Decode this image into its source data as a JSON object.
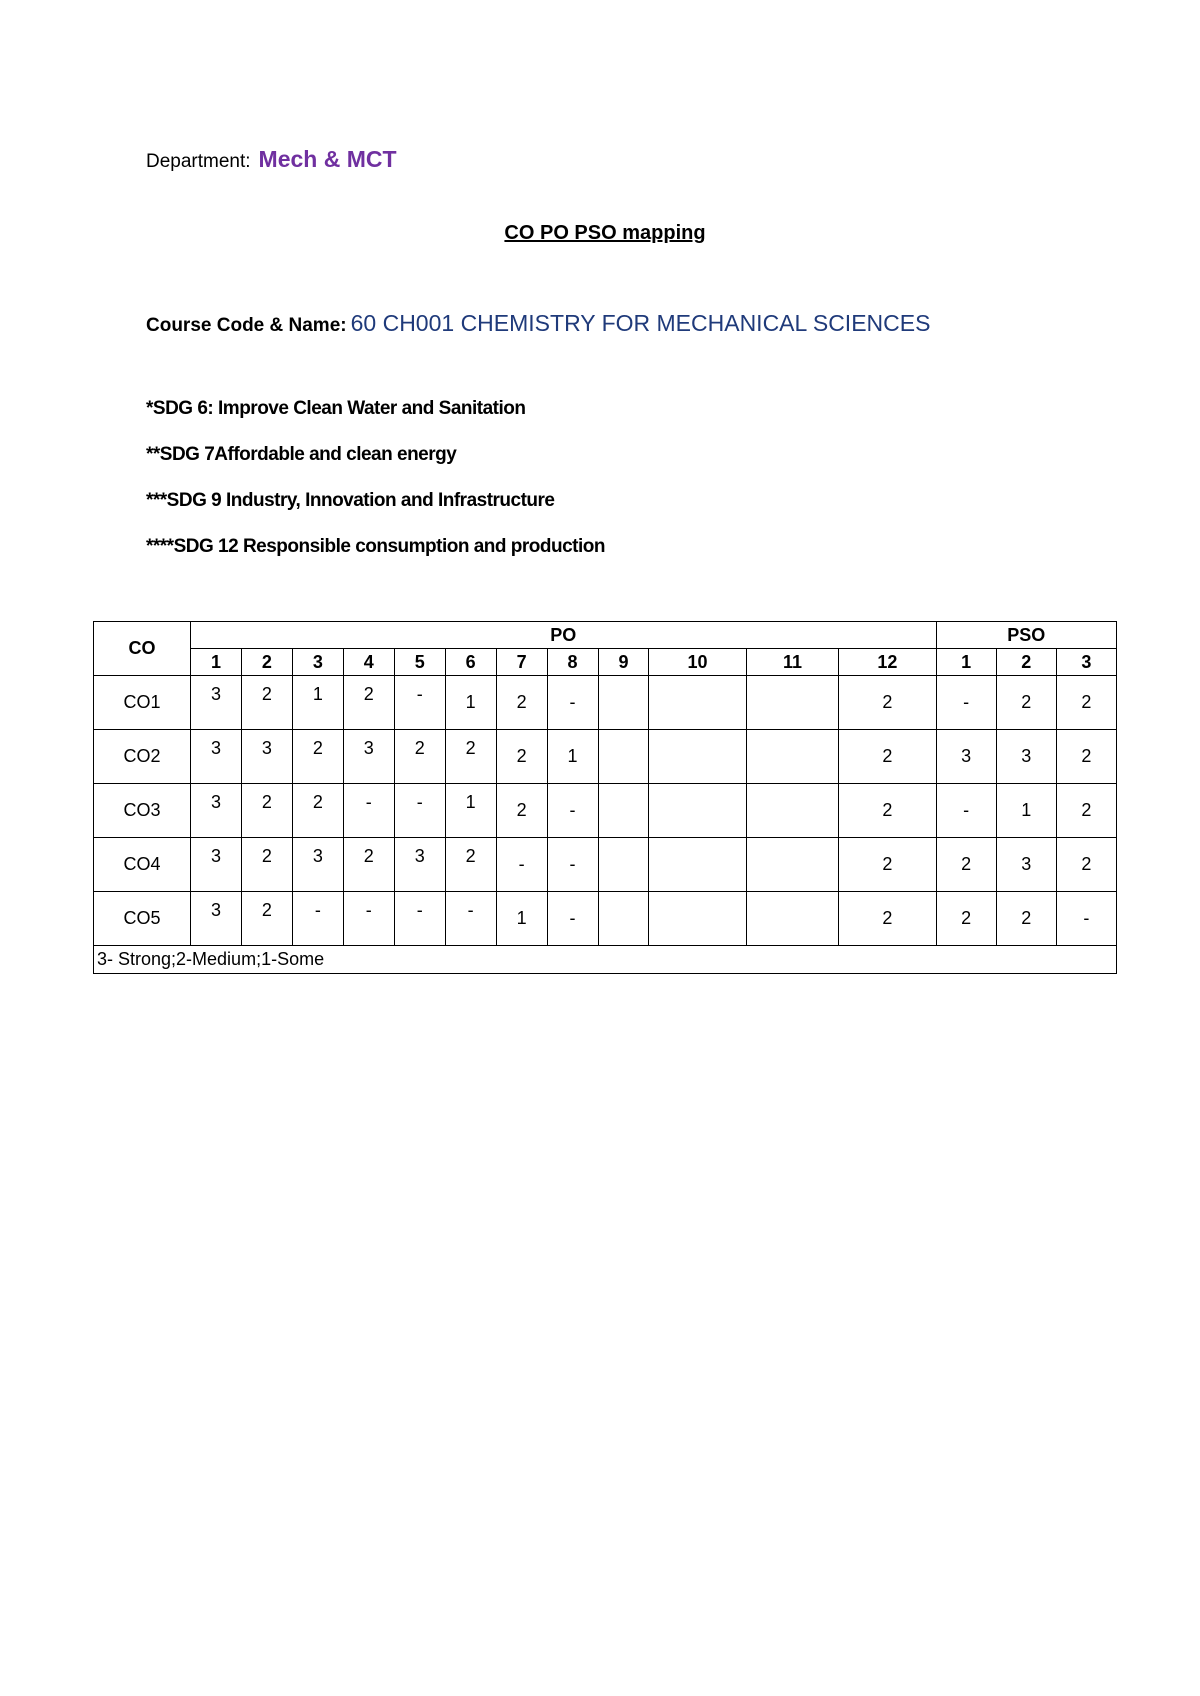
{
  "department": {
    "label": "Department:",
    "value": "Mech & MCT"
  },
  "title": "CO PO PSO mapping",
  "course": {
    "label": "Course Code & Name:",
    "value": "60 CH001 CHEMISTRY FOR MECHANICAL SCIENCES"
  },
  "sdgs": [
    "*SDG 6: Improve Clean Water and Sanitation",
    "**SDG 7Affordable and clean energy",
    "***SDG 9 Industry, Innovation and Infrastructure",
    "****SDG 12 Responsible consumption and production"
  ],
  "table": {
    "co_header": "CO",
    "po_header": "PO",
    "pso_header": "PSO",
    "po_cols": [
      "1",
      "2",
      "3",
      "4",
      "5",
      "6",
      "7",
      "8",
      "9",
      "10",
      "11",
      "12"
    ],
    "pso_cols": [
      "1",
      "2",
      "3"
    ],
    "rows": [
      {
        "co": "CO1",
        "po": [
          "3",
          "2",
          "1",
          "2",
          "-",
          "1",
          "2",
          "-",
          "",
          "",
          "",
          "2"
        ],
        "pso": [
          "-",
          "2",
          "2"
        ]
      },
      {
        "co": "CO2",
        "po": [
          "3",
          "3",
          "2",
          "3",
          "2",
          "2",
          "2",
          "1",
          "",
          "",
          "",
          "2"
        ],
        "pso": [
          "3",
          "3",
          "2"
        ]
      },
      {
        "co": "CO3",
        "po": [
          "3",
          "2",
          "2",
          "-",
          "-",
          "1",
          "2",
          "-",
          "",
          "",
          "",
          "2"
        ],
        "pso": [
          "-",
          "1",
          "2"
        ]
      },
      {
        "co": "CO4",
        "po": [
          "3",
          "2",
          "3",
          "2",
          "3",
          "2",
          "-",
          "-",
          "",
          "",
          "",
          "2"
        ],
        "pso": [
          "2",
          "3",
          "2"
        ]
      },
      {
        "co": "CO5",
        "po": [
          "3",
          "2",
          "-",
          "-",
          "-",
          "-",
          "1",
          "-",
          "",
          "",
          "",
          "2"
        ],
        "pso": [
          "2",
          "2",
          "-"
        ]
      }
    ],
    "legend": "3- Strong;2-Medium;1-Some"
  }
}
